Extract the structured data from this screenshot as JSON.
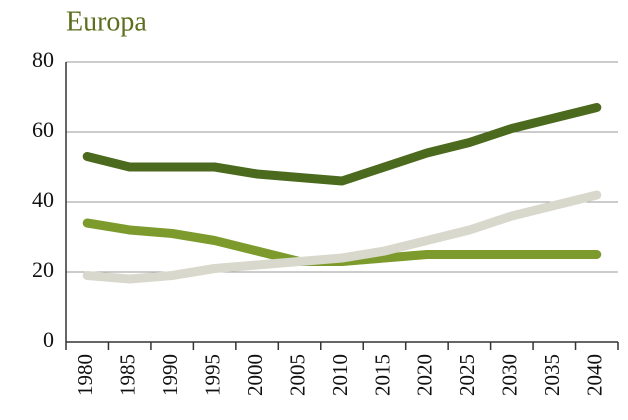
{
  "chart_data": {
    "type": "line",
    "title": "Europa",
    "categories": [
      "1980",
      "1985",
      "1990",
      "1995",
      "2000",
      "2005",
      "2010",
      "2015",
      "2020",
      "2025",
      "2030",
      "2035",
      "2040"
    ],
    "series": [
      {
        "color": "#4b6a1e",
        "values": [
          53,
          50,
          50,
          50,
          48,
          47,
          46,
          50,
          54,
          57,
          61,
          64,
          67
        ]
      },
      {
        "color": "#7c9b2c",
        "values": [
          34,
          32,
          31,
          29,
          26,
          23,
          23,
          24,
          25,
          25,
          25,
          25,
          25
        ]
      },
      {
        "color": "#d9d8cc",
        "values": [
          19,
          18,
          19,
          21,
          22,
          23,
          24,
          26,
          29,
          32,
          36,
          39,
          42
        ]
      }
    ],
    "ylim": [
      0,
      80
    ],
    "yticks": [
      0,
      20,
      40,
      60,
      80
    ],
    "grid": true
  }
}
